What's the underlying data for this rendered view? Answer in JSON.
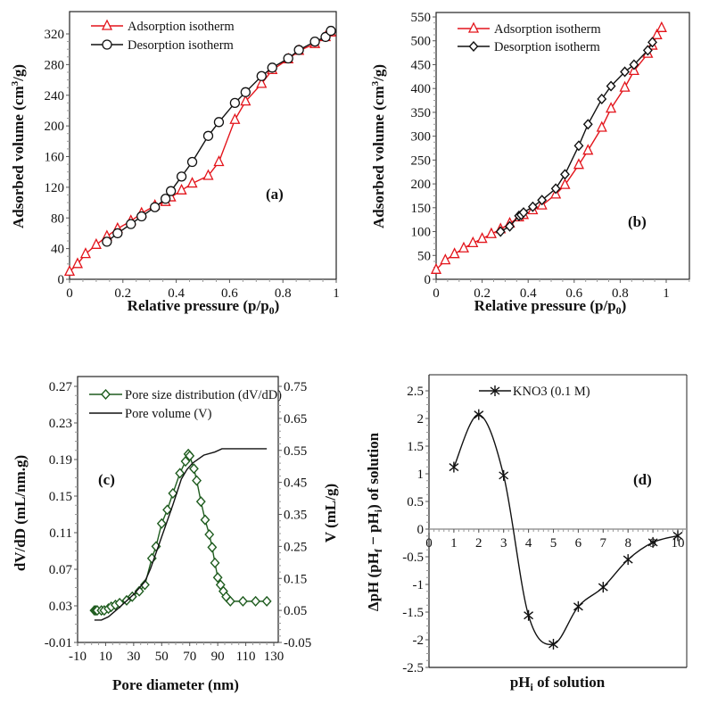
{
  "chart_data": [
    {
      "panel": "(a)",
      "type": "line",
      "xlabel_parts": [
        "Relative pressure (p/p",
        "0",
        ")"
      ],
      "ylabel_parts": [
        "Adsorbed volume  (cm",
        "3",
        "/g)"
      ],
      "xlim": [
        0,
        1
      ],
      "ylim": [
        0,
        350
      ],
      "xticks": [
        "0",
        "0.2",
        "0.4",
        "0.6",
        "0.8",
        "1"
      ],
      "yticks": [
        "0",
        "40",
        "80",
        "120",
        "160",
        "200",
        "240",
        "280",
        "320"
      ],
      "legend_position": "top-left",
      "series": [
        {
          "name": "Adsorption isotherm",
          "color": "#e3141b",
          "marker": "triangle",
          "x": [
            0,
            0.03,
            0.06,
            0.1,
            0.14,
            0.18,
            0.23,
            0.27,
            0.32,
            0.36,
            0.38,
            0.42,
            0.46,
            0.52,
            0.56,
            0.62,
            0.66,
            0.72,
            0.76,
            0.82,
            0.86,
            0.92,
            0.96,
            0.98
          ],
          "y": [
            10,
            20,
            33,
            45,
            56,
            66,
            76,
            86,
            96,
            101,
            107,
            116,
            125,
            135,
            153,
            208,
            232,
            255,
            273,
            287,
            298,
            307,
            316,
            322
          ]
        },
        {
          "name": "Desorption isotherm",
          "color": "#111111",
          "marker": "circle",
          "x": [
            0.14,
            0.18,
            0.23,
            0.27,
            0.32,
            0.36,
            0.38,
            0.42,
            0.46,
            0.52,
            0.56,
            0.62,
            0.66,
            0.72,
            0.76,
            0.82,
            0.86,
            0.92,
            0.96,
            0.98
          ],
          "y": [
            49,
            60,
            72,
            82,
            94,
            105,
            115,
            134,
            153,
            187,
            205,
            230,
            244,
            265,
            276,
            288,
            299,
            310,
            316,
            324
          ]
        }
      ]
    },
    {
      "panel": "(b)",
      "type": "line",
      "xlabel_parts": [
        "Relative pressure (p/p",
        "0",
        ")"
      ],
      "ylabel_parts": [
        "Adsorbed volume (cm",
        "3",
        "/g)"
      ],
      "xlim": [
        0,
        1.1
      ],
      "ylim": [
        0,
        550
      ],
      "xticks": [
        "0",
        "0.2",
        "0.4",
        "0.6",
        "0.8",
        "1"
      ],
      "yticks": [
        "0",
        "50",
        "100",
        "150",
        "200",
        "250",
        "300",
        "350",
        "400",
        "450",
        "500",
        "550"
      ],
      "legend_position": "top-left",
      "series": [
        {
          "name": "Adsorption isotherm",
          "color": "#e3141b",
          "marker": "triangle",
          "x": [
            0,
            0.04,
            0.08,
            0.12,
            0.16,
            0.2,
            0.24,
            0.28,
            0.32,
            0.36,
            0.38,
            0.42,
            0.46,
            0.52,
            0.56,
            0.62,
            0.66,
            0.72,
            0.76,
            0.82,
            0.86,
            0.92,
            0.94,
            0.96,
            0.98
          ],
          "y": [
            20,
            40,
            53,
            65,
            76,
            85,
            95,
            105,
            117,
            130,
            135,
            145,
            155,
            178,
            198,
            240,
            270,
            318,
            358,
            402,
            437,
            473,
            490,
            512,
            527
          ]
        },
        {
          "name": "Desorption isotherm",
          "color": "#111111",
          "marker": "diamond",
          "x": [
            0.28,
            0.32,
            0.36,
            0.37,
            0.38,
            0.42,
            0.46,
            0.52,
            0.56,
            0.62,
            0.66,
            0.72,
            0.76,
            0.82,
            0.86,
            0.92,
            0.94
          ],
          "y": [
            100,
            111,
            133,
            135,
            140,
            152,
            166,
            190,
            220,
            280,
            325,
            378,
            405,
            435,
            450,
            480,
            497
          ]
        }
      ]
    },
    {
      "panel": "(c)",
      "type": "line",
      "xlabel": "Pore diameter (nm)",
      "ylabel": "dV/dD (mL/nm.g)",
      "y2label": "V (mL/g)",
      "xlim": [
        -10,
        130
      ],
      "ylim": [
        -0.01,
        0.27
      ],
      "y2lim": [
        -0.05,
        0.75
      ],
      "xticks": [
        "-10",
        "10",
        "30",
        "50",
        "70",
        "90",
        "110",
        "130"
      ],
      "yticks": [
        "-0.01",
        "0.03",
        "0.07",
        "0.11",
        "0.15",
        "0.19",
        "0.23",
        "0.27"
      ],
      "y2ticks": [
        "-0.05",
        "0.05",
        "0.15",
        "0.25",
        "0.35",
        "0.45",
        "0.55",
        "0.65",
        "0.75"
      ],
      "legend_position": "top-left",
      "series": [
        {
          "name": "Pore size distribution (dV/dD)",
          "color": "#1f5c1f",
          "marker": "diamond",
          "axis": "left",
          "x": [
            2,
            3,
            4,
            7,
            9,
            12,
            14,
            17,
            20,
            25,
            29,
            34,
            38,
            43,
            46,
            50,
            54,
            58,
            63,
            67,
            69,
            70,
            73,
            75,
            78,
            81,
            84,
            86,
            88,
            90,
            92,
            94,
            96,
            99,
            108,
            117,
            125
          ],
          "y": [
            0.025,
            0.025,
            0.025,
            0.025,
            0.025,
            0.027,
            0.029,
            0.031,
            0.033,
            0.036,
            0.04,
            0.046,
            0.053,
            0.082,
            0.095,
            0.12,
            0.135,
            0.153,
            0.175,
            0.188,
            0.196,
            0.194,
            0.18,
            0.167,
            0.144,
            0.124,
            0.108,
            0.094,
            0.077,
            0.061,
            0.053,
            0.046,
            0.04,
            0.035,
            0.035,
            0.035,
            0.035
          ]
        },
        {
          "name": "Pore volume (V)",
          "color": "#111111",
          "marker": "none",
          "axis": "right",
          "x": [
            2,
            7,
            12,
            20,
            30,
            38,
            42,
            50,
            58,
            64,
            68,
            72,
            80,
            88,
            93,
            125
          ],
          "y": [
            0.02,
            0.02,
            0.03,
            0.06,
            0.1,
            0.14,
            0.18,
            0.28,
            0.38,
            0.46,
            0.49,
            0.51,
            0.535,
            0.545,
            0.555,
            0.555
          ]
        }
      ]
    },
    {
      "panel": "(d)",
      "type": "line",
      "xlabel_parts": [
        "pH",
        "i",
        " of solution"
      ],
      "ylabel_parts": [
        "ΔpH (pH",
        "f",
        " − pH",
        "i",
        ") of solution"
      ],
      "xlim": [
        0,
        10.2
      ],
      "ylim": [
        -2.5,
        2.5
      ],
      "xticks": [
        "0",
        "1",
        "2",
        "3",
        "4",
        "5",
        "6",
        "7",
        "8",
        "9",
        "10"
      ],
      "yticks": [
        "-2.5",
        "-2",
        "-1.5",
        "-1",
        "-0.5",
        "0",
        "0.5",
        "1",
        "1.5",
        "2",
        "2.5"
      ],
      "legend_position": "top-center",
      "series": [
        {
          "name": "KNO3 (0.1 M)",
          "color": "#111111",
          "marker": "asterisk",
          "smooth": true,
          "x": [
            1,
            2,
            3,
            4,
            5,
            6,
            7,
            8,
            9,
            10
          ],
          "y": [
            1.12,
            2.07,
            0.97,
            -1.56,
            -2.08,
            -1.4,
            -1.05,
            -0.55,
            -0.24,
            -0.12
          ]
        }
      ]
    }
  ]
}
